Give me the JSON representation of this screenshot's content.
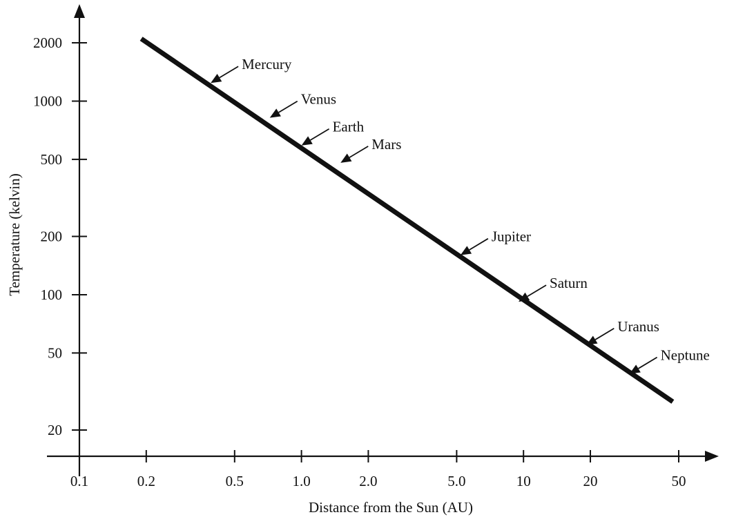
{
  "chart_data": {
    "type": "line",
    "title": "",
    "xlabel": "Distance from the Sun (AU)",
    "ylabel": "Temperature (kelvin)",
    "x_scale": "log",
    "y_scale": "log",
    "xlim": [
      0.1,
      50
    ],
    "ylim": [
      20,
      2000
    ],
    "grid": false,
    "x_ticks": [
      {
        "value": 0.1,
        "label": "0.1"
      },
      {
        "value": 0.2,
        "label": "0.2"
      },
      {
        "value": 0.5,
        "label": "0.5"
      },
      {
        "value": 1.0,
        "label": "1.0"
      },
      {
        "value": 2.0,
        "label": "2.0"
      },
      {
        "value": 5.0,
        "label": "5.0"
      },
      {
        "value": 10,
        "label": "10"
      },
      {
        "value": 20,
        "label": "20"
      },
      {
        "value": 50,
        "label": "50"
      }
    ],
    "y_ticks": [
      {
        "value": 20,
        "label": "20"
      },
      {
        "value": 50,
        "label": "50"
      },
      {
        "value": 100,
        "label": "100"
      },
      {
        "value": 200,
        "label": "200"
      },
      {
        "value": 500,
        "label": "500"
      },
      {
        "value": 1000,
        "label": "1000"
      },
      {
        "value": 2000,
        "label": "2000"
      }
    ],
    "series": [
      {
        "x": [
          0.19,
          47
        ],
        "y": [
          2100,
          28
        ]
      }
    ],
    "annotations": [
      {
        "label": "Mercury",
        "x": 0.39,
        "y": 1240
      },
      {
        "label": "Venus",
        "x": 0.72,
        "y": 820
      },
      {
        "label": "Earth",
        "x": 1.0,
        "y": 590
      },
      {
        "label": "Mars",
        "x": 1.5,
        "y": 480
      },
      {
        "label": "Jupiter",
        "x": 5.2,
        "y": 160
      },
      {
        "label": "Saturn",
        "x": 9.5,
        "y": 92
      },
      {
        "label": "Uranus",
        "x": 19.2,
        "y": 55
      },
      {
        "label": "Neptune",
        "x": 30,
        "y": 39
      }
    ]
  }
}
